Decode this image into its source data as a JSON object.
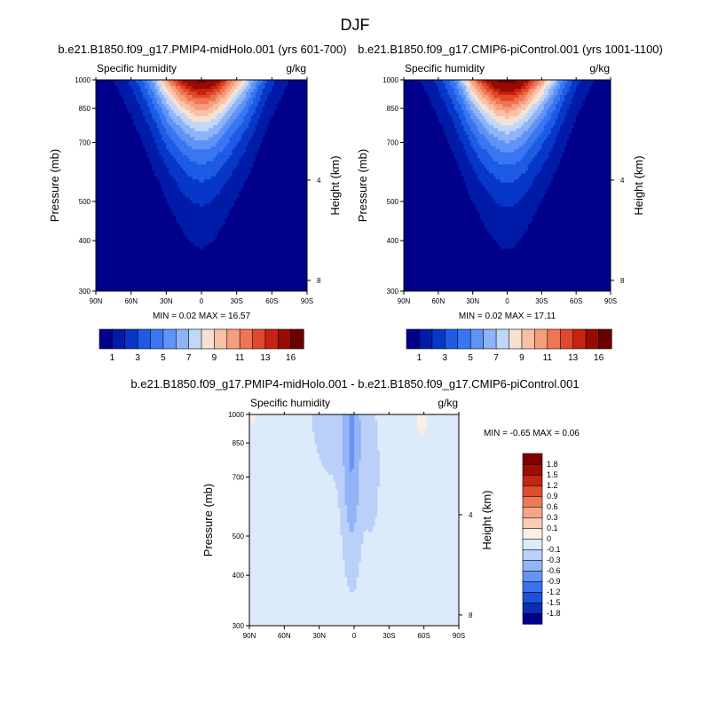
{
  "figure": {
    "title": "DJF"
  },
  "chart_data": [
    {
      "type": "heatmap",
      "title": "b.e21.B1850.f09_g17.PMIP4-midHolo.001 (yrs 601-700)",
      "left_label": "Specific humidity",
      "right_label": "g/kg",
      "xlabel": "",
      "ylabel": "Pressure (mb)",
      "y2label": "Height (km)",
      "x_ticks": [
        "90N",
        "60N",
        "30N",
        "0",
        "30S",
        "60S",
        "90S"
      ],
      "x_tick_values": [
        90,
        60,
        30,
        0,
        -30,
        -60,
        -90
      ],
      "xlim": [
        90,
        -90
      ],
      "y_ticks": [
        300,
        400,
        500,
        700,
        850,
        1000
      ],
      "ylim": [
        1000,
        300
      ],
      "y_scale": "log",
      "y2_ticks": [
        8,
        4
      ],
      "field": "q_ctrl",
      "scale": 16.57,
      "min": "0.02",
      "max": "16.57",
      "stats_text": "MIN =  0.02  MAX =  16.57",
      "colorbar": {
        "orientation": "horizontal",
        "tick_labels": [
          "1",
          "3",
          "5",
          "7",
          "9",
          "11",
          "13",
          "16"
        ],
        "levels": [
          1,
          2,
          3,
          4,
          5,
          6,
          7,
          8,
          9,
          10,
          11,
          12,
          13,
          14,
          16
        ],
        "colors": [
          "#00008b",
          "#001ba8",
          "#0637c8",
          "#1d5be4",
          "#3a76f2",
          "#5f93f6",
          "#8fb3f7",
          "#c0d7f8",
          "#f6e1d3",
          "#f8c0a6",
          "#f59e7c",
          "#ee7653",
          "#e04a2c",
          "#c82211",
          "#990a00",
          "#6b0000"
        ]
      }
    },
    {
      "type": "heatmap",
      "title": "b.e21.B1850.f09_g17.CMIP6-piControl.001 (yrs 1001-1100)",
      "left_label": "Specific humidity",
      "right_label": "g/kg",
      "xlabel": "",
      "ylabel": "Pressure (mb)",
      "y2label": "Height (km)",
      "x_ticks": [
        "90N",
        "60N",
        "30N",
        "0",
        "30S",
        "60S",
        "90S"
      ],
      "x_tick_values": [
        90,
        60,
        30,
        0,
        -30,
        -60,
        -90
      ],
      "xlim": [
        90,
        -90
      ],
      "y_ticks": [
        300,
        400,
        500,
        700,
        850,
        1000
      ],
      "ylim": [
        1000,
        300
      ],
      "y_scale": "log",
      "y2_ticks": [
        8,
        4
      ],
      "field": "q_ctrl",
      "scale": 17.11,
      "min": "0.02",
      "max": "17.11",
      "stats_text": "MIN =  0.02  MAX =  17.11",
      "colorbar": {
        "orientation": "horizontal",
        "tick_labels": [
          "1",
          "3",
          "5",
          "7",
          "9",
          "11",
          "13",
          "16"
        ],
        "levels": [
          1,
          2,
          3,
          4,
          5,
          6,
          7,
          8,
          9,
          10,
          11,
          12,
          13,
          14,
          16
        ],
        "colors": [
          "#00008b",
          "#001ba8",
          "#0637c8",
          "#1d5be4",
          "#3a76f2",
          "#5f93f6",
          "#8fb3f7",
          "#c0d7f8",
          "#f6e1d3",
          "#f8c0a6",
          "#f59e7c",
          "#ee7653",
          "#e04a2c",
          "#c82211",
          "#990a00",
          "#6b0000"
        ]
      }
    },
    {
      "type": "heatmap",
      "title": "b.e21.B1850.f09_g17.PMIP4-midHolo.001 - b.e21.B1850.f09_g17.CMIP6-piControl.001",
      "left_label": "Specific humidity",
      "right_label": "g/kg",
      "xlabel": "",
      "ylabel": "Pressure (mb)",
      "y2label": "Height (km)",
      "x_ticks": [
        "90N",
        "60N",
        "30N",
        "0",
        "30S",
        "60S",
        "90S"
      ],
      "x_tick_values": [
        90,
        60,
        30,
        0,
        -30,
        -60,
        -90
      ],
      "xlim": [
        90,
        -90
      ],
      "y_ticks": [
        300,
        400,
        500,
        700,
        850,
        1000
      ],
      "ylim": [
        1000,
        300
      ],
      "y_scale": "log",
      "y2_ticks": [
        8,
        4
      ],
      "field": "q_diff",
      "min": "-0.65",
      "max": "0.06",
      "stats_text": "MIN = -0.65  MAX =   0.06",
      "colorbar": {
        "orientation": "vertical",
        "tick_labels": [
          "1.8",
          "1.5",
          "1.2",
          "0.9",
          "0.6",
          "0.3",
          "0.1",
          "0",
          "-0.1",
          "-0.3",
          "-0.6",
          "-0.9",
          "-1.2",
          "-1.5",
          "-1.8"
        ],
        "levels": [
          -1.8,
          -1.5,
          -1.2,
          -0.9,
          -0.6,
          -0.3,
          -0.1,
          0,
          0.1,
          0.3,
          0.6,
          0.9,
          1.2,
          1.5,
          1.8
        ],
        "colors": [
          "#00008b",
          "#0a2db4",
          "#1d50d8",
          "#3a72ef",
          "#6694f5",
          "#93b4f6",
          "#bad0f8",
          "#dcebfa",
          "#fdeee3",
          "#f8cdb3",
          "#f4a585",
          "#ec7a57",
          "#dc4d2e",
          "#c42413",
          "#a00c00",
          "#800000"
        ]
      }
    }
  ]
}
